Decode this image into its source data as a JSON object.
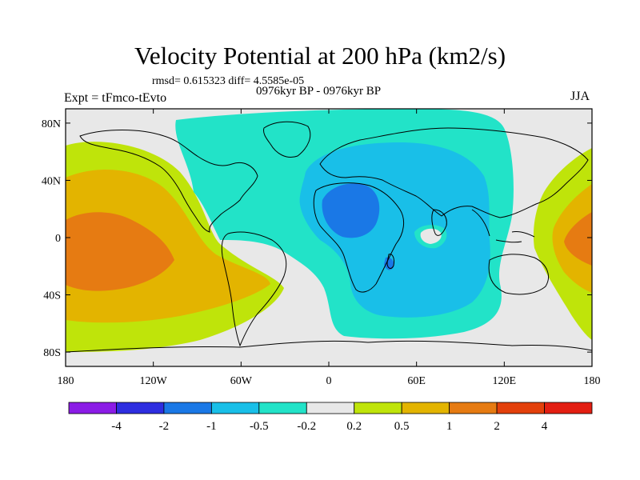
{
  "header": {
    "title": "Velocity Potential at 200 hPa (km2/s)",
    "stats": "rmsd= 0.615323 diff= 4.5585e-05",
    "experiment": "Expt = tFmco-tEvto",
    "period": "0976kyr BP - 0976kyr BP",
    "season": "JJA"
  },
  "axes": {
    "lat_ticks": [
      "80N",
      "40N",
      "0",
      "40S",
      "80S"
    ],
    "lat_values": [
      80,
      40,
      0,
      -40,
      -80
    ],
    "lon_ticks": [
      "180",
      "120W",
      "60W",
      "0",
      "60E",
      "120E",
      "180"
    ],
    "lon_values": [
      -180,
      -120,
      -60,
      0,
      60,
      120,
      180
    ]
  },
  "colorbar": {
    "colors": [
      "#8b1ce6",
      "#2e2ee0",
      "#1a78e6",
      "#19bfe8",
      "#22e3c8",
      "#e8e8e8",
      "#bfe40a",
      "#e3b400",
      "#e67b12",
      "#e3400b",
      "#e31e12"
    ],
    "labels": [
      "-4",
      "-2",
      "-1",
      "-0.5",
      "-0.2",
      "0.2",
      "0.5",
      "1",
      "2",
      "4"
    ]
  },
  "legend_colors": {
    "ocean_neutral": "#e8e8e8",
    "coast": "#000000"
  }
}
